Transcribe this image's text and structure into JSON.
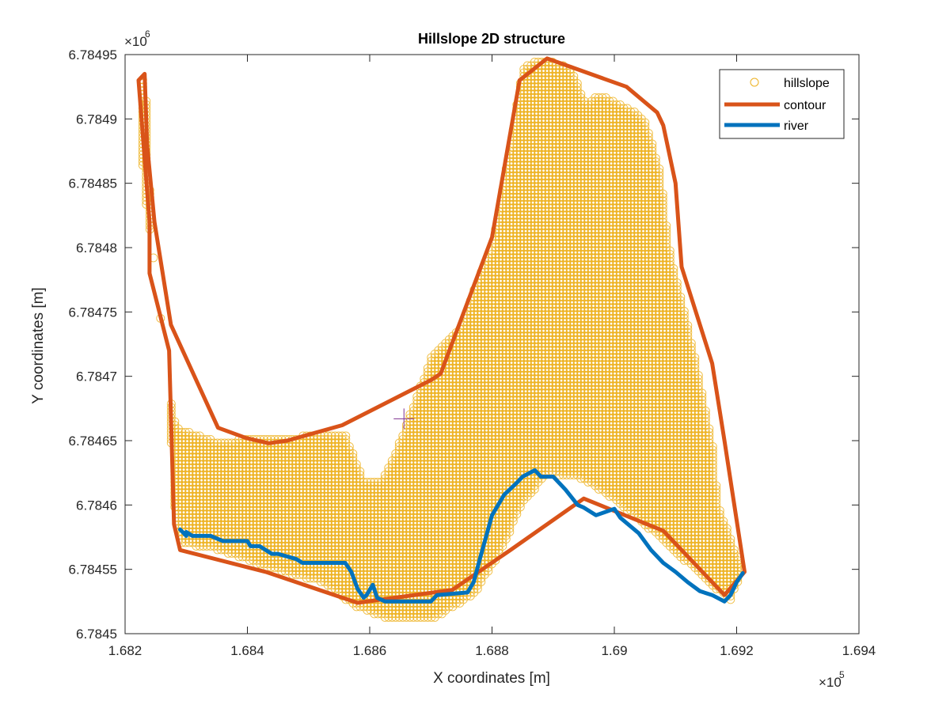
{
  "chart_data": {
    "type": "scatter",
    "title": "Hillslope 2D structure",
    "xlabel": "X coordinates [m]",
    "ylabel": "Y coordinates [m]",
    "x_exponent": "×10",
    "x_exponent_power": "5",
    "y_exponent": "×10",
    "y_exponent_power": "6",
    "xlim": [
      1.682,
      1.694
    ],
    "ylim": [
      6.7845,
      6.78495
    ],
    "x_ticks": [
      1.682,
      1.684,
      1.686,
      1.688,
      1.69,
      1.692,
      1.694
    ],
    "x_tick_labels": [
      "1.682",
      "1.684",
      "1.686",
      "1.688",
      "1.69",
      "1.692",
      "1.694"
    ],
    "y_ticks": [
      6.7845,
      6.78455,
      6.7846,
      6.78465,
      6.7847,
      6.78475,
      6.7848,
      6.78485,
      6.7849,
      6.78495
    ],
    "y_tick_labels": [
      "6.7845",
      "6.78455",
      "6.7846",
      "6.78465",
      "6.7847",
      "6.78475",
      "6.7848",
      "6.78485",
      "6.7849",
      "6.78495"
    ],
    "grid": false,
    "legend_position": "top-right",
    "series": [
      {
        "name": "hillslope",
        "kind": "marker",
        "marker": "circle",
        "color": "#EDB120",
        "region_boundary": [
          [
            1.68223,
            6.78493
          ],
          [
            1.68233,
            6.784935
          ],
          [
            1.6824,
            6.78485
          ],
          [
            1.68245,
            6.7848
          ],
          [
            1.68256,
            6.78475
          ],
          [
            1.68268,
            6.78471
          ],
          [
            1.68275,
            6.78468
          ],
          [
            1.68285,
            6.78466
          ],
          [
            1.6835,
            6.78465
          ],
          [
            1.6853,
            6.784655
          ],
          [
            1.6856,
            6.784655
          ],
          [
            1.6859,
            6.78462
          ],
          [
            1.6862,
            6.78462
          ],
          [
            1.6865,
            6.78465
          ],
          [
            1.687,
            6.784715
          ],
          [
            1.6875,
            6.78474
          ],
          [
            1.6878,
            6.78478
          ],
          [
            1.688,
            6.7848
          ],
          [
            1.6883,
            6.78488
          ],
          [
            1.6885,
            6.78494
          ],
          [
            1.6888,
            6.784947
          ],
          [
            1.6893,
            6.78494
          ],
          [
            1.68955,
            6.78491
          ],
          [
            1.6897,
            6.78492
          ],
          [
            1.6902,
            6.78491
          ],
          [
            1.6905,
            6.7849
          ],
          [
            1.69075,
            6.78486
          ],
          [
            1.6909,
            6.7848
          ],
          [
            1.6913,
            6.78472
          ],
          [
            1.6916,
            6.78465
          ],
          [
            1.6917,
            6.7846
          ],
          [
            1.6921,
            6.78455
          ],
          [
            1.6919,
            6.784525
          ],
          [
            1.6913,
            6.78455
          ],
          [
            1.6906,
            6.78458
          ],
          [
            1.6901,
            6.7846
          ],
          [
            1.6895,
            6.78462
          ],
          [
            1.6889,
            6.784625
          ],
          [
            1.6885,
            6.7846
          ],
          [
            1.6881,
            6.78456
          ],
          [
            1.6877,
            6.78453
          ],
          [
            1.687,
            6.78451
          ],
          [
            1.6864,
            6.78451
          ],
          [
            1.6858,
            6.78452
          ],
          [
            1.6852,
            6.78454
          ],
          [
            1.6844,
            6.78455
          ],
          [
            1.6835,
            6.784565
          ],
          [
            1.6829,
            6.78457
          ],
          [
            1.6828,
            6.7846
          ],
          [
            1.6827,
            6.7847
          ],
          [
            1.6826,
            6.78474
          ],
          [
            1.6823,
            6.78485
          ]
        ]
      },
      {
        "name": "contour",
        "kind": "line",
        "color": "#D95319",
        "x": [
          1.68222,
          1.68232,
          1.68236,
          1.68248,
          1.68275,
          1.68352,
          1.68398,
          1.68435,
          1.68465,
          1.68555,
          1.687,
          1.68716,
          1.688,
          1.68845,
          1.6889,
          1.6902,
          1.6907,
          1.6908,
          1.691,
          1.6911,
          1.6916,
          1.6918,
          1.69213,
          1.6918,
          1.6915,
          1.6908,
          1.6895,
          1.6883,
          1.68735,
          1.6858,
          1.6843,
          1.6829,
          1.6828,
          1.68272,
          1.6824,
          1.6824,
          1.68222
        ],
        "y": [
          6.78493,
          6.784935,
          6.78488,
          6.78482,
          6.78474,
          6.78466,
          6.784652,
          6.784648,
          6.78465,
          6.784662,
          6.784697,
          6.784702,
          6.784808,
          6.78493,
          6.784947,
          6.784925,
          6.784905,
          6.784895,
          6.78485,
          6.784785,
          6.78471,
          6.78465,
          6.784548,
          6.78453,
          6.784545,
          6.78458,
          6.784605,
          6.784565,
          6.784534,
          6.784524,
          6.784548,
          6.784565,
          6.784585,
          6.78472,
          6.78478,
          6.78482,
          6.78493
        ]
      },
      {
        "name": "river",
        "kind": "line",
        "color": "#0072BD",
        "x": [
          1.6829,
          1.683,
          1.683,
          1.6831,
          1.6834,
          1.6836,
          1.684,
          1.68405,
          1.6842,
          1.6844,
          1.6845,
          1.6848,
          1.6849,
          1.6853,
          1.6856,
          1.6857,
          1.6858,
          1.6859,
          1.68595,
          1.68605,
          1.68612,
          1.68625,
          1.687,
          1.6871,
          1.6876,
          1.6877,
          1.6878,
          1.6879,
          1.688,
          1.6882,
          1.6884,
          1.6885,
          1.6887,
          1.6888,
          1.6889,
          1.689,
          1.6892,
          1.6894,
          1.6895,
          1.6897,
          1.69,
          1.6901,
          1.6904,
          1.6906,
          1.6908,
          1.691,
          1.6912,
          1.6914,
          1.6916,
          1.6918,
          1.6919,
          1.692,
          1.6921
        ],
        "y": [
          6.784581,
          6.784576,
          6.784579,
          6.784576,
          6.784576,
          6.784572,
          6.784572,
          6.784568,
          6.784568,
          6.784562,
          6.784562,
          6.784558,
          6.784555,
          6.784555,
          6.784555,
          6.784548,
          6.784535,
          6.784528,
          6.78453,
          6.784538,
          6.784528,
          6.784525,
          6.784525,
          6.78453,
          6.784532,
          6.78454,
          6.784558,
          6.784575,
          6.784592,
          6.784608,
          6.784617,
          6.784622,
          6.784627,
          6.784622,
          6.784622,
          6.784622,
          6.784612,
          6.7846,
          6.784598,
          6.784592,
          6.784597,
          6.78459,
          6.784578,
          6.784565,
          6.784555,
          6.784548,
          6.78454,
          6.784533,
          6.78453,
          6.784525,
          6.78453,
          6.78454,
          6.784547
        ]
      }
    ],
    "annotations": [
      {
        "kind": "crosshair-marker",
        "x": 1.68656,
        "y": 6.784667,
        "color": "#7E2F8E"
      }
    ]
  }
}
